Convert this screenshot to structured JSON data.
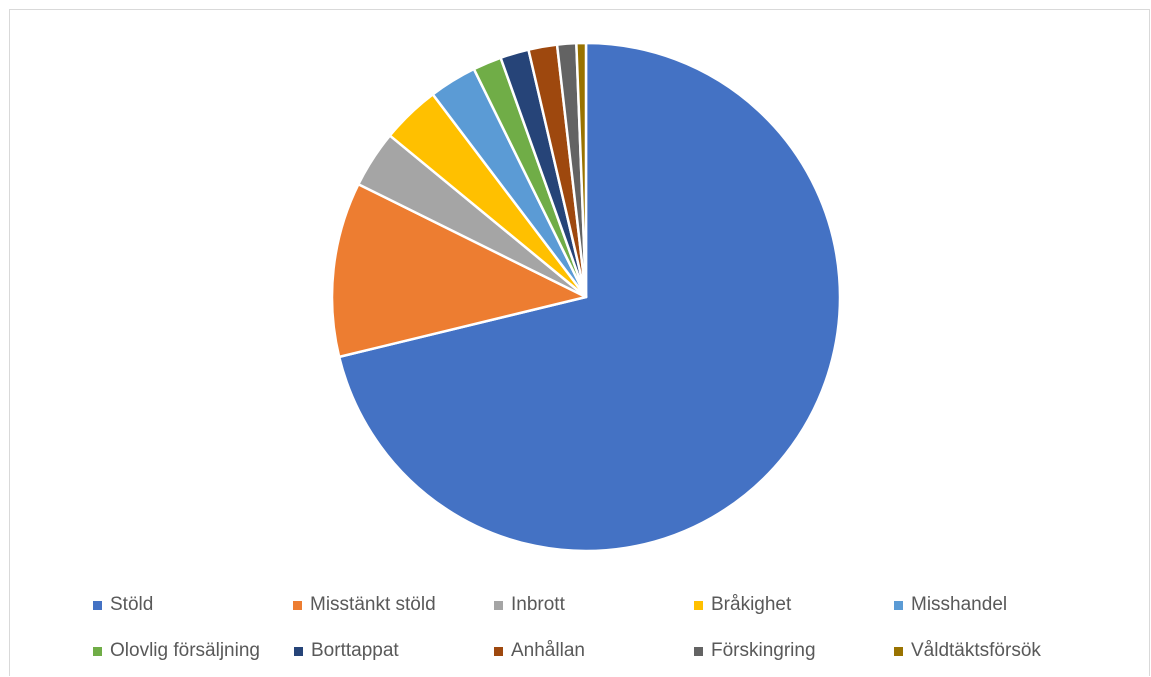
{
  "chart_data": {
    "type": "pie",
    "title": "",
    "legend_position": "bottom",
    "categories": [
      "Stöld",
      "Misstänkt stöld",
      "Inbrott",
      "Bråkighet",
      "Misshandel",
      "Olovlig försäljning",
      "Borttappat",
      "Anhållan",
      "Förskingring",
      "Våldtäktsförsök"
    ],
    "values": [
      70.5,
      11.0,
      3.6,
      3.7,
      3.0,
      1.8,
      1.8,
      1.8,
      1.2,
      0.6
    ],
    "colors": [
      "#4472C4",
      "#ED7D31",
      "#A5A5A5",
      "#FFC000",
      "#5B9BD5",
      "#70AD47",
      "#264478",
      "#9E480E",
      "#636363",
      "#997300"
    ]
  }
}
